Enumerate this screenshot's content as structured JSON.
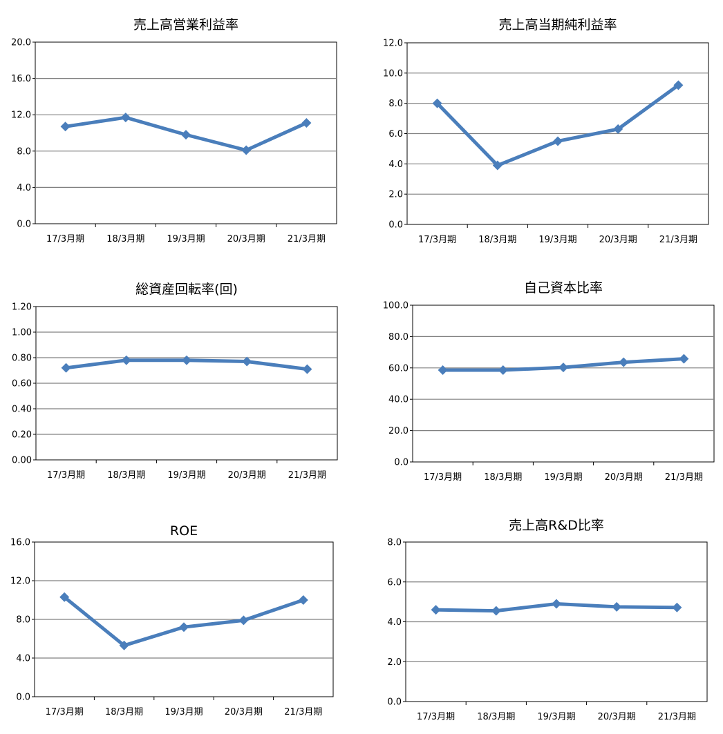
{
  "chart_data": [
    {
      "type": "line",
      "title": "売上高営業利益率",
      "categories": [
        "17/3月期",
        "18/3月期",
        "19/3月期",
        "20/3月期",
        "21/3月期"
      ],
      "values": [
        10.7,
        11.7,
        9.8,
        8.1,
        11.1
      ],
      "ylim": [
        0,
        20
      ],
      "yticks": [
        "0.0",
        "4.0",
        "8.0",
        "12.0",
        "16.0",
        "20.0"
      ],
      "grid": true,
      "line_color": "#4a7ebb"
    },
    {
      "type": "line",
      "title": "売上高当期純利益率",
      "categories": [
        "17/3月期",
        "18/3月期",
        "19/3月期",
        "20/3月期",
        "21/3月期"
      ],
      "values": [
        8.0,
        3.9,
        5.5,
        6.3,
        9.2
      ],
      "ylim": [
        0,
        12
      ],
      "yticks": [
        "0.0",
        "2.0",
        "4.0",
        "6.0",
        "8.0",
        "10.0",
        "12.0"
      ],
      "grid": true,
      "line_color": "#4a7ebb"
    },
    {
      "type": "line",
      "title": "総資産回転率(回)",
      "categories": [
        "17/3月期",
        "18/3月期",
        "19/3月期",
        "20/3月期",
        "21/3月期"
      ],
      "values": [
        0.72,
        0.78,
        0.78,
        0.77,
        0.71
      ],
      "ylim": [
        0,
        1.2
      ],
      "yticks": [
        "0.00",
        "0.20",
        "0.40",
        "0.60",
        "0.80",
        "1.00",
        "1.20"
      ],
      "grid": true,
      "line_color": "#4a7ebb"
    },
    {
      "type": "line",
      "title": "自己資本比率",
      "categories": [
        "17/3月期",
        "18/3月期",
        "19/3月期",
        "20/3月期",
        "21/3月期"
      ],
      "values": [
        58.6,
        58.6,
        60.3,
        63.6,
        65.8
      ],
      "ylim": [
        0,
        100
      ],
      "yticks": [
        "0.0",
        "20.0",
        "40.0",
        "60.0",
        "80.0",
        "100.0"
      ],
      "grid": true,
      "line_color": "#4a7ebb"
    },
    {
      "type": "line",
      "title": "ROE",
      "categories": [
        "17/3月期",
        "18/3月期",
        "19/3月期",
        "20/3月期",
        "21/3月期"
      ],
      "values": [
        10.3,
        5.3,
        7.2,
        7.9,
        10.0
      ],
      "ylim": [
        0,
        16
      ],
      "yticks": [
        "0.0",
        "4.0",
        "8.0",
        "12.0",
        "16.0"
      ],
      "grid": true,
      "line_color": "#4a7ebb"
    },
    {
      "type": "line",
      "title": "売上高R&D比率",
      "categories": [
        "17/3月期",
        "18/3月期",
        "19/3月期",
        "20/3月期",
        "21/3月期"
      ],
      "values": [
        4.6,
        4.55,
        4.9,
        4.75,
        4.72
      ],
      "ylim": [
        0,
        8
      ],
      "yticks": [
        "0.0",
        "2.0",
        "4.0",
        "6.0",
        "8.0"
      ],
      "grid": true,
      "line_color": "#4a7ebb"
    }
  ]
}
